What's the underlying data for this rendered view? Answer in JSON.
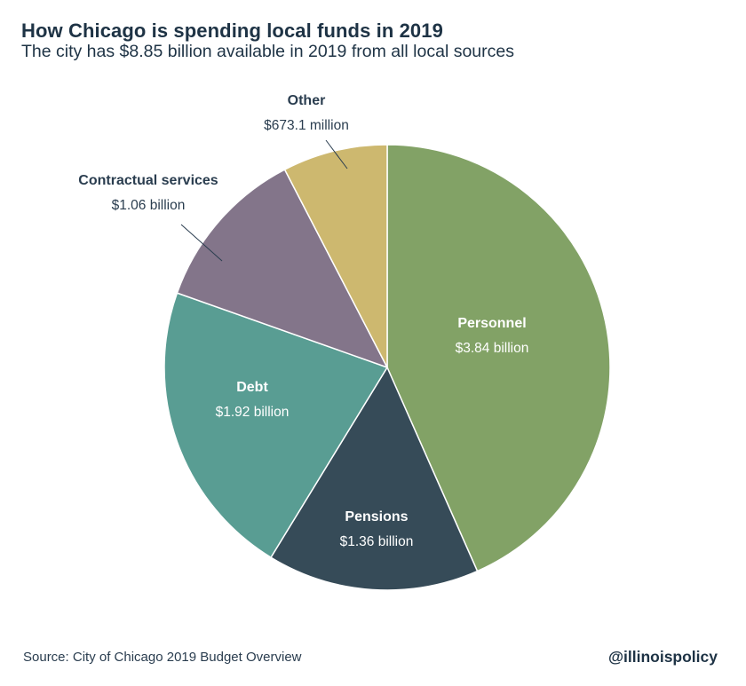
{
  "title": "How Chicago is spending local funds in 2019",
  "subtitle": "The city has $8.85 billion available in 2019 from all local sources",
  "source": "Source:  City of Chicago 2019 Budget Overview",
  "brand": "@illinoispolicy",
  "chart_data": {
    "type": "pie",
    "title": "How Chicago is spending local funds in 2019",
    "subtitle": "The city has $8.85 billion available in 2019 from all local sources",
    "unit": "billion USD",
    "slices": [
      {
        "name": "Personnel",
        "value": 3.84,
        "label": "$3.84 billion",
        "color": "#82a266",
        "label_placement": "inside"
      },
      {
        "name": "Pensions",
        "value": 1.36,
        "label": "$1.36 billion",
        "color": "#364b58",
        "label_placement": "inside"
      },
      {
        "name": "Debt",
        "value": 1.92,
        "label": "$1.92 billion",
        "color": "#599d93",
        "label_placement": "inside"
      },
      {
        "name": "Contractual services",
        "value": 1.06,
        "label": "$1.06 billion",
        "color": "#83758a",
        "label_placement": "outside"
      },
      {
        "name": "Other",
        "value": 0.6731,
        "label": "$673.1 million",
        "color": "#cdb86f",
        "label_placement": "outside"
      }
    ],
    "start_angle": "12 o'clock",
    "direction": "clockwise",
    "legend": "none"
  }
}
